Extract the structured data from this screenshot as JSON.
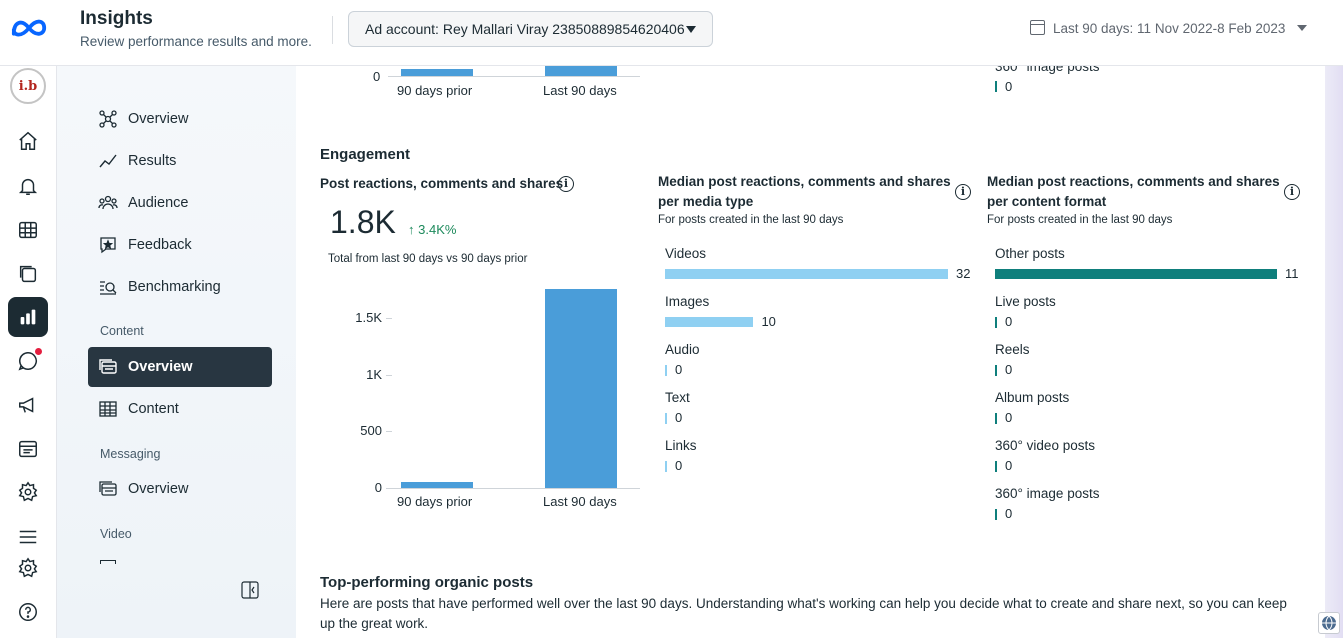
{
  "header": {
    "title": "Insights",
    "subtitle": "Review performance results and more.",
    "ad_account": "Ad account: Rey Mallari Viray 23850889854620406",
    "date_range": "Last 90 days: 11 Nov 2022-8 Feb 2023"
  },
  "profile": {
    "initials": "i.b"
  },
  "subnav": {
    "items": [
      {
        "label": "Overview"
      },
      {
        "label": "Results"
      },
      {
        "label": "Audience"
      },
      {
        "label": "Feedback"
      },
      {
        "label": "Benchmarking"
      }
    ],
    "content_section": "Content",
    "content_items": [
      {
        "label": "Overview"
      },
      {
        "label": "Content"
      }
    ],
    "messaging_section": "Messaging",
    "messaging_items": [
      {
        "label": "Overview"
      }
    ],
    "video_section": "Video"
  },
  "top_fragment": {
    "zero_label": "0",
    "x_prior": "90 days prior",
    "x_last": "Last 90 days",
    "right_label": "360° image posts",
    "right_value": "0"
  },
  "engagement": {
    "section_title": "Engagement",
    "reactions": {
      "title": "Post reactions, comments and shares",
      "value": "1.8K",
      "delta": "3.4K%",
      "caption": "Total from last 90 days vs 90 days prior",
      "chart_data": {
        "type": "bar",
        "categories": [
          "90 days prior",
          "Last 90 days"
        ],
        "values": [
          52,
          1760
        ],
        "ylim": [
          0,
          1800
        ],
        "yticks": [
          "1.5K",
          "1K",
          "500",
          "0"
        ],
        "ytick_values": [
          1500,
          1000,
          500,
          0
        ],
        "color": "#4a9dd9"
      }
    },
    "media_type": {
      "title": "Median post reactions, comments and shares per media type",
      "subtitle": "For posts created in the last 90 days",
      "color": "#8fd0f2",
      "rows": [
        {
          "label": "Videos",
          "value": 32
        },
        {
          "label": "Images",
          "value": 10
        },
        {
          "label": "Audio",
          "value": 0
        },
        {
          "label": "Text",
          "value": 0
        },
        {
          "label": "Links",
          "value": 0
        }
      ]
    },
    "content_format": {
      "title": "Median post reactions, comments and shares per content format",
      "subtitle": "For posts created in the last 90 days",
      "color": "#0f7f7c",
      "rows": [
        {
          "label": "Other posts",
          "value": 11
        },
        {
          "label": "Live posts",
          "value": 0
        },
        {
          "label": "Reels",
          "value": 0
        },
        {
          "label": "Album posts",
          "value": 0
        },
        {
          "label": "360° video posts",
          "value": 0
        },
        {
          "label": "360° image posts",
          "value": 0
        }
      ]
    }
  },
  "top_posts": {
    "title": "Top-performing organic posts",
    "description": "Here are posts that have performed well over the last 90 days. Understanding what's working can help you decide what to create and share next, so you can keep up the great work."
  }
}
